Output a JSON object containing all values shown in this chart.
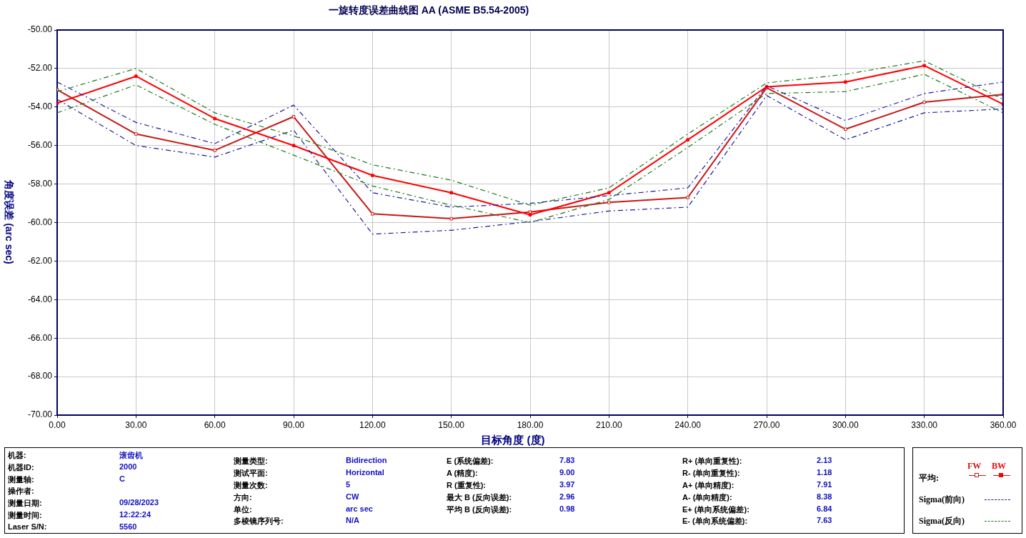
{
  "chart_data": {
    "type": "line",
    "title": "一旋转度误差曲线图 AA (ASME B5.54-2005)",
    "xlabel": "目标角度 (度)",
    "ylabel": "角度误差 (arc sec)",
    "legend_title": "平均:",
    "legend": "bottom right",
    "grid": true,
    "x": [
      0,
      30,
      60,
      90,
      120,
      150,
      180,
      210,
      240,
      270,
      300,
      330,
      360
    ],
    "xlim": [
      0,
      360
    ],
    "xticks": [
      {
        "value": 0,
        "label": "0.00"
      },
      {
        "value": 30,
        "label": "30.00"
      },
      {
        "value": 60,
        "label": "60.00"
      },
      {
        "value": 90,
        "label": "90.00"
      },
      {
        "value": 120,
        "label": "120.00"
      },
      {
        "value": 150,
        "label": "150.00"
      },
      {
        "value": 180,
        "label": "180.00"
      },
      {
        "value": 210,
        "label": "210.00"
      },
      {
        "value": 240,
        "label": "240.00"
      },
      {
        "value": 270,
        "label": "270.00"
      },
      {
        "value": 300,
        "label": "300.00"
      },
      {
        "value": 330,
        "label": "330.00"
      },
      {
        "value": 360,
        "label": "360.00"
      }
    ],
    "ylim": [
      -70,
      -50
    ],
    "yticks": [
      {
        "value": -70,
        "label": "-70.00"
      },
      {
        "value": -68,
        "label": "-68.00"
      },
      {
        "value": -66,
        "label": "-66.00"
      },
      {
        "value": -64,
        "label": "-64.00"
      },
      {
        "value": -62,
        "label": "-62.00"
      },
      {
        "value": -60,
        "label": "-60.00"
      },
      {
        "value": -58,
        "label": "-58.00"
      },
      {
        "value": -56,
        "label": "-56.00"
      },
      {
        "value": -54,
        "label": "-54.00"
      },
      {
        "value": -52,
        "label": "-52.00"
      },
      {
        "value": -50,
        "label": "-50.00"
      }
    ],
    "series": [
      {
        "name": "FW",
        "color": "#c81818",
        "marker": "square",
        "line_style": "solid",
        "values": [
          -53.1,
          -55.4,
          -56.25,
          -54.5,
          -59.55,
          -59.8,
          -59.45,
          -58.95,
          -58.7,
          -53.0,
          -55.15,
          -53.75,
          -53.35
        ]
      },
      {
        "name": "BW",
        "color": "#ff0000",
        "marker": "square",
        "line_style": "solid",
        "values": [
          -53.8,
          -52.4,
          -54.6,
          -56.0,
          -57.55,
          -58.45,
          -59.6,
          -58.45,
          -55.7,
          -52.95,
          -52.7,
          -51.85,
          -53.85
        ]
      },
      {
        "name": "Sigma(前向)",
        "color": "#1a1aa0",
        "marker": "none",
        "line_style": "dashed",
        "values": [
          -52.7,
          -54.8,
          -55.9,
          -53.9,
          -58.45,
          -59.2,
          -59.0,
          -58.6,
          -58.2,
          -52.9,
          -54.7,
          -53.3,
          -52.7
        ]
      },
      {
        "color": "#1a1aa0",
        "marker": "none",
        "line_style": "dashed",
        "values": [
          -53.6,
          -56.0,
          -56.6,
          -55.2,
          -60.6,
          -60.4,
          -59.95,
          -59.4,
          -59.2,
          -53.4,
          -55.7,
          -54.3,
          -54.1
        ]
      },
      {
        "name": "Sigma(反向)",
        "color": "#1a7a1a",
        "marker": "none",
        "line_style": "dashed",
        "values": [
          -53.2,
          -52.0,
          -54.3,
          -55.5,
          -57.0,
          -57.8,
          -59.1,
          -58.2,
          -55.4,
          -52.75,
          -52.3,
          -51.6,
          -53.6
        ]
      },
      {
        "color": "#1a7a1a",
        "marker": "none",
        "line_style": "dashed",
        "values": [
          -54.3,
          -52.85,
          -54.9,
          -56.5,
          -58.1,
          -59.1,
          -60.0,
          -58.8,
          -56.1,
          -53.3,
          -53.2,
          -52.3,
          -54.3
        ]
      }
    ],
    "annotations": [
      "机器:",
      "滚齿机",
      "机器ID:",
      "2000",
      "测量轴:",
      "C",
      "操作者:",
      "测量日期:",
      "09/28/2023",
      "测量时间:",
      "12:22:24",
      "Laser S/N:",
      "5560",
      "测量类型:",
      "Bidirection",
      "测试平面:",
      "Horizontal",
      "测量次数:",
      "5",
      "方向:",
      "CW",
      "单位:",
      "arc sec",
      "多棱镜序列号:",
      "N/A",
      "E (系统偏差):",
      "7.83",
      "A (精度):",
      "9.00",
      "R (重复性):",
      "3.97",
      "最大 B (反向误差):",
      "2.96",
      "平均 B (反向误差):",
      "0.98",
      "R+ (单向重复性):",
      "2.13",
      "R- (单向重复性):",
      "1.18",
      "A+ (单向精度):",
      "7.91",
      "A- (单向精度):",
      "8.38",
      "E+ (单向系统偏差):",
      "6.84",
      "E- (单向系统偏差):",
      "7.63"
    ]
  }
}
